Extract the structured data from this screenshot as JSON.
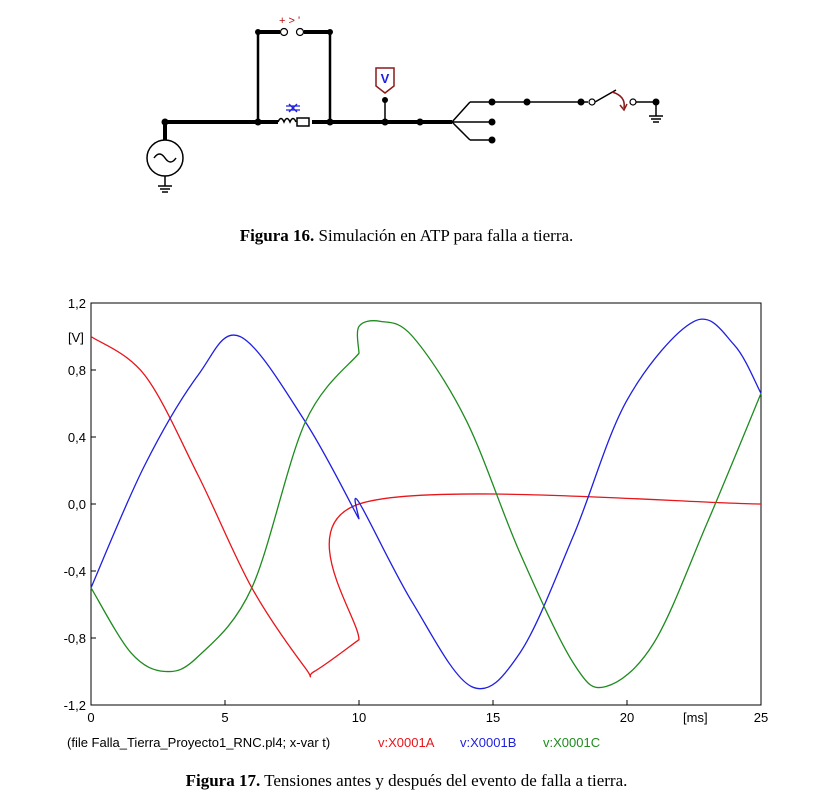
{
  "figure16": {
    "label": "Figura 16.",
    "caption": "Simulación en ATP para falla a tierra.",
    "probe_label": "V",
    "switch_label": "+ > '"
  },
  "figure17": {
    "label": "Figura 17.",
    "caption": "Tensiones antes y después del evento de falla a tierra."
  },
  "chart_data": {
    "type": "line",
    "unit_label": "[V]",
    "xlabel": "[ms]",
    "xlim": [
      0,
      25
    ],
    "ylim": [
      -1.2,
      1.2
    ],
    "x_ticks": [
      "0",
      "5",
      "10",
      "15",
      "20",
      "25"
    ],
    "y_ticks": [
      "1,2",
      "0,8",
      "0,4",
      "0,0",
      "-0,4",
      "-0,8",
      "-1,2"
    ],
    "footer": "(file Falla_Tierra_Proyecto1_RNC.pl4; x-var t)",
    "grid": false,
    "series": [
      {
        "name": "v:X0001A",
        "color": "#e8151a",
        "points": [
          [
            0,
            1.0
          ],
          [
            2,
            0.77
          ],
          [
            4,
            0.17
          ],
          [
            6,
            -0.5
          ],
          [
            8,
            -0.98
          ],
          [
            8.33,
            -1.0
          ],
          [
            10,
            -0.81
          ],
          [
            10,
            0.0
          ],
          [
            25,
            0.0
          ]
        ]
      },
      {
        "name": "v:X0001B",
        "color": "#1f1fe0",
        "points": [
          [
            0,
            -0.5
          ],
          [
            2,
            0.23
          ],
          [
            4,
            0.77
          ],
          [
            5.56,
            1.0
          ],
          [
            8,
            0.49
          ],
          [
            10,
            -0.09
          ],
          [
            10,
            0.01
          ],
          [
            12,
            -0.59
          ],
          [
            14.2,
            -1.09
          ],
          [
            16,
            -0.89
          ],
          [
            18,
            -0.19
          ],
          [
            20,
            0.62
          ],
          [
            22.5,
            1.09
          ],
          [
            24,
            0.95
          ],
          [
            25,
            0.66
          ]
        ]
      },
      {
        "name": "v:X0001C",
        "color": "#1f8b1f",
        "points": [
          [
            0,
            -0.5
          ],
          [
            1.5,
            -0.89
          ],
          [
            2.78,
            -1.0
          ],
          [
            4,
            -0.91
          ],
          [
            6,
            -0.5
          ],
          [
            8,
            0.49
          ],
          [
            10,
            0.9
          ],
          [
            10,
            1.06
          ],
          [
            10.8,
            1.09
          ],
          [
            12,
            1.0
          ],
          [
            14,
            0.5
          ],
          [
            16,
            -0.29
          ],
          [
            18,
            -0.95
          ],
          [
            19.2,
            -1.09
          ],
          [
            21,
            -0.83
          ],
          [
            23,
            -0.11
          ],
          [
            25,
            0.66
          ]
        ]
      }
    ]
  }
}
